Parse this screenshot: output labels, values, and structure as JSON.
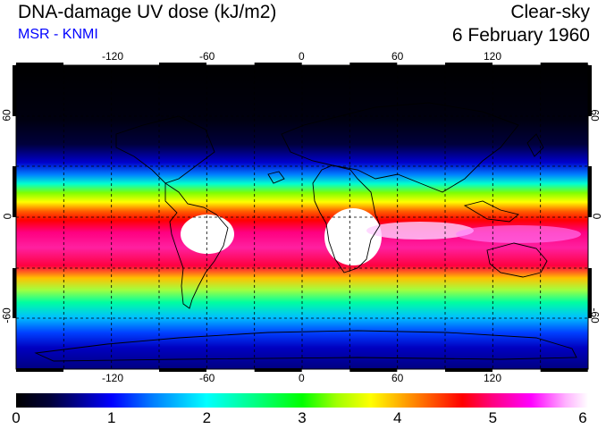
{
  "header": {
    "title": "DNA-damage UV dose (kJ/m2)",
    "subtitle": "MSR - KNMI",
    "condition": "Clear-sky",
    "date": "6 February 1960"
  },
  "map": {
    "lon_ticks": [
      "-120",
      "-60",
      "0",
      "60",
      "120"
    ],
    "lat_ticks": [
      "60",
      "0",
      "-60"
    ]
  },
  "colorbar": {
    "labels": [
      "0",
      "1",
      "2",
      "3",
      "4",
      "5",
      "6"
    ],
    "min": 0,
    "max": 6
  }
}
